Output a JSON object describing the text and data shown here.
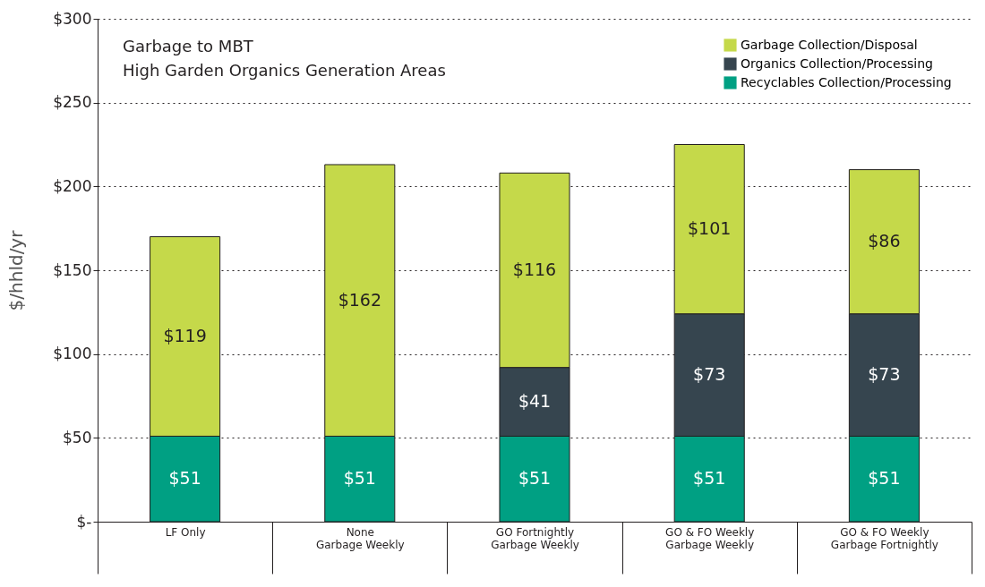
{
  "chart_data": {
    "type": "bar",
    "stacked": true,
    "title": "Garbage to MBT",
    "subtitle": "High Garden Organics Generation Areas",
    "ylabel": "$/hhld/yr",
    "categories": [
      "LF Only",
      "None\nGarbage Weekly",
      "GO Fortnightly\nGarbage Weekly",
      "GO & FO Weekly\nGarbage Weekly",
      "GO & FO Weekly\nGarbage Fortnightly"
    ],
    "series": [
      {
        "name": "Recyclables Collection/Processing",
        "color": "#00a083",
        "values": [
          51,
          51,
          51,
          51,
          51
        ],
        "value_labels": [
          "$51",
          "$51",
          "$51",
          "$51",
          "$51"
        ]
      },
      {
        "name": "Organics Collection/Processing",
        "color": "#36454f",
        "values": [
          null,
          null,
          41,
          73,
          73
        ],
        "value_labels": [
          null,
          null,
          "$41",
          "$73",
          "$73"
        ]
      },
      {
        "name": "Garbage Collection/Disposal",
        "color": "#c5d94a",
        "values": [
          119,
          162,
          116,
          101,
          86
        ],
        "value_labels": [
          "$119",
          "$162",
          "$116",
          "$101",
          "$86"
        ]
      }
    ],
    "ylim": [
      0,
      300
    ],
    "yticks": [
      {
        "value": 0,
        "label": "$-"
      },
      {
        "value": 50,
        "label": "$50"
      },
      {
        "value": 100,
        "label": "$100"
      },
      {
        "value": 150,
        "label": "$150"
      },
      {
        "value": 200,
        "label": "$200"
      },
      {
        "value": 250,
        "label": "$250"
      },
      {
        "value": 300,
        "label": "$300"
      }
    ],
    "grid": "y",
    "legend": "top right"
  }
}
